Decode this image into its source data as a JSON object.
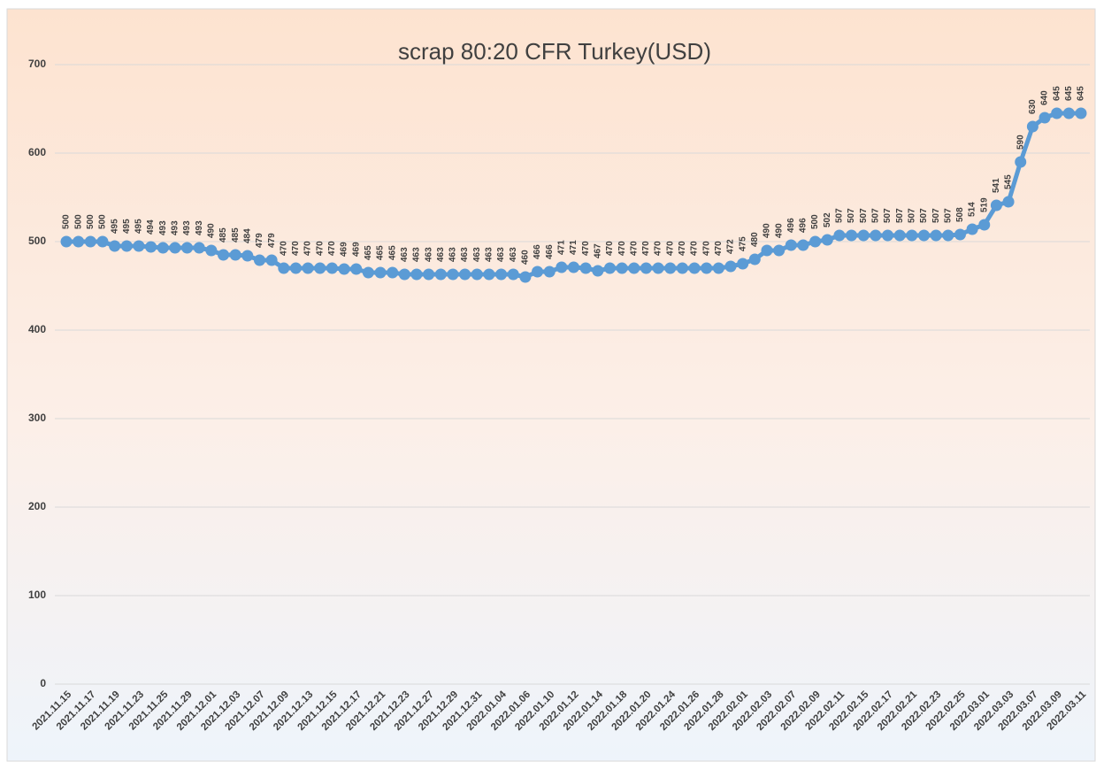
{
  "chart_data": {
    "type": "line",
    "title": "scrap 80:20 CFR Turkey(USD)",
    "categories": [
      "2021.11.15",
      null,
      "2021.11.17",
      null,
      "2021.11.19",
      null,
      "2021.11.23",
      null,
      "2021.11.25",
      null,
      "2021.11.29",
      null,
      "2021.12.01",
      null,
      "2021.12.03",
      null,
      "2021.12.07",
      null,
      "2021.12.09",
      null,
      "2021.12.13",
      null,
      "2021.12.15",
      null,
      "2021.12.17",
      null,
      "2021.12.21",
      null,
      "2021.12.23",
      null,
      "2021.12.27",
      null,
      "2021.12.29",
      null,
      "2021.12.31",
      null,
      "2022.01.04",
      null,
      "2022.01.06",
      null,
      "2022.01.10",
      null,
      "2022.01.12",
      null,
      "2022.01.14",
      null,
      "2022.01.18",
      null,
      "2022.01.20",
      null,
      "2022.01.24",
      null,
      "2022.01.26",
      null,
      "2022.01.28",
      null,
      "2022.02.01",
      null,
      "2022.02.03",
      null,
      "2022.02.07",
      null,
      "2022.02.09",
      null,
      "2022.02.11",
      null,
      "2022.02.15",
      null,
      "2022.02.17",
      null,
      "2022.02.21",
      null,
      "2022.02.23",
      null,
      "2022.02.25",
      null,
      "2022.03.01",
      null,
      "2022.03.03",
      null,
      "2022.03.07",
      null,
      "2022.03.09",
      null,
      "2022.03.11"
    ],
    "series": [
      {
        "name": "scrap 80:20 CFR Turkey(USD)",
        "color": "#5b9bd5",
        "values": [
          500,
          500,
          500,
          500,
          495,
          495,
          495,
          494,
          493,
          493,
          493,
          493,
          490,
          485,
          485,
          484,
          479,
          479,
          470,
          470,
          470,
          470,
          470,
          469,
          469,
          465,
          465,
          465,
          463,
          463,
          463,
          463,
          463,
          463,
          463,
          463,
          463,
          463,
          460,
          466,
          466,
          471,
          471,
          470,
          467,
          470,
          470,
          470,
          470,
          470,
          470,
          470,
          470,
          470,
          470,
          472,
          475,
          480,
          490,
          490,
          496,
          496,
          500,
          502,
          507,
          507,
          507,
          507,
          507,
          507,
          507,
          507,
          507,
          507,
          508,
          514,
          519,
          541,
          545,
          590,
          630,
          640,
          645,
          645,
          645
        ]
      }
    ],
    "ylim": [
      0,
      700
    ],
    "yticks": [
      0,
      100,
      200,
      300,
      400,
      500,
      600,
      700
    ],
    "grid": true
  }
}
